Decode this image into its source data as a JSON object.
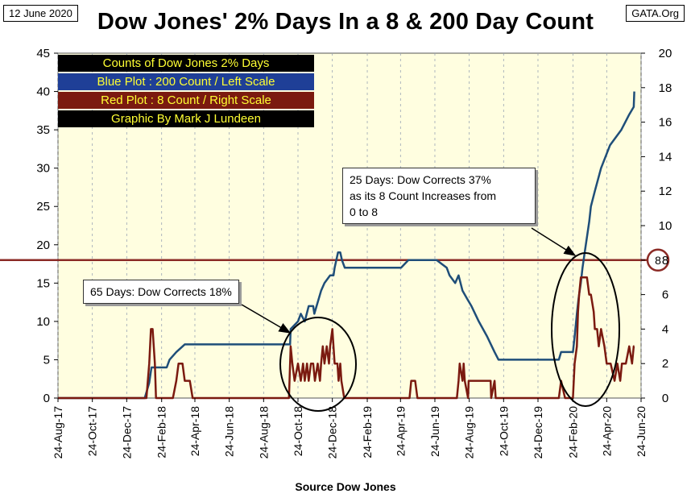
{
  "header": {
    "date": "12 June 2020",
    "title": "Dow Jones' 2% Days In a 8 & 200 Day Count",
    "source": "GATA.Org"
  },
  "legend": {
    "lines": [
      "Counts of Dow Jones 2% Days",
      "Blue Plot : 200 Count / Left Scale",
      "Red Plot : 8 Count / Right Scale",
      "Graphic By Mark J Lundeen"
    ],
    "colors": [
      "#000000",
      "#1f3f97",
      "#7b1a10",
      "#000000"
    ]
  },
  "annotations": {
    "a1": "65 Days: Dow Corrects 18%",
    "a2_line1": "25 Days: Dow Corrects 37%",
    "a2_line2": "as its 8 Count Increases from",
    "a2_line3": "0 to 8"
  },
  "reference": {
    "value": 8,
    "label": "8",
    "color": "#8b2a25"
  },
  "chart_data": {
    "type": "line",
    "xlabel": "Source Dow Jones",
    "x_ticks": [
      "24-Aug-17",
      "24-Oct-17",
      "24-Dec-17",
      "24-Feb-18",
      "24-Apr-18",
      "24-Jun-18",
      "24-Aug-18",
      "24-Oct-18",
      "24-Dec-18",
      "24-Feb-19",
      "24-Apr-19",
      "24-Jun-19",
      "24-Aug-19",
      "24-Oct-19",
      "24-Dec-19",
      "24-Feb-20",
      "24-Apr-20",
      "24-Jun-20"
    ],
    "x_range": [
      "24-Aug-17",
      "24-Jun-20"
    ],
    "y_left": {
      "ylim": [
        0,
        45
      ],
      "ticks": [
        0,
        5,
        10,
        15,
        20,
        25,
        30,
        35,
        40,
        45
      ]
    },
    "y_right": {
      "ylim": [
        0,
        20
      ],
      "ticks": [
        0,
        2,
        4,
        6,
        8,
        10,
        12,
        14,
        16,
        18,
        20
      ]
    },
    "plot_background": "#fffee0",
    "series": [
      {
        "name": "200 Count",
        "axis": "left",
        "color": "#1f4e79",
        "x": [
          "2017-08-24",
          "2018-01-25",
          "2018-02-02",
          "2018-02-06",
          "2018-03-05",
          "2018-03-10",
          "2018-03-22",
          "2018-04-06",
          "2018-04-20",
          "2018-10-10",
          "2018-10-11",
          "2018-10-24",
          "2018-10-29",
          "2018-11-05",
          "2018-11-12",
          "2018-11-20",
          "2018-11-22",
          "2018-12-04",
          "2018-12-10",
          "2018-12-20",
          "2018-12-26",
          "2018-12-28",
          "2019-01-03",
          "2019-01-07",
          "2019-01-10",
          "2019-01-15",
          "2019-04-25",
          "2019-05-08",
          "2019-05-14",
          "2019-05-20",
          "2019-06-27",
          "2019-07-15",
          "2019-07-20",
          "2019-07-30",
          "2019-08-05",
          "2019-08-12",
          "2019-08-20",
          "2019-08-28",
          "2019-09-10",
          "2019-09-25",
          "2019-10-08",
          "2019-10-15",
          "2020-01-30",
          "2020-02-03",
          "2020-02-24",
          "2020-02-27",
          "2020-03-02",
          "2020-03-05",
          "2020-03-09",
          "2020-03-12",
          "2020-03-16",
          "2020-03-18",
          "2020-03-24",
          "2020-03-27",
          "2020-04-03",
          "2020-04-14",
          "2020-04-30",
          "2020-05-20",
          "2020-06-03",
          "2020-06-11",
          "2020-06-12"
        ],
        "y": [
          0,
          0,
          2,
          4,
          4,
          5,
          6,
          7,
          7,
          7,
          9,
          10,
          11,
          10,
          12,
          12,
          11,
          14,
          15,
          16,
          16,
          17,
          19,
          19,
          18,
          17,
          17,
          18,
          18,
          18,
          18,
          17,
          16,
          15,
          16,
          14,
          13,
          12,
          10,
          8,
          6,
          5,
          5,
          6,
          6,
          8,
          11,
          13,
          15,
          17,
          19,
          20,
          23,
          25,
          27,
          30,
          33,
          35,
          37,
          38,
          40
        ]
      },
      {
        "name": "8 Count",
        "axis": "right",
        "color": "#7b1a10",
        "x": [
          "2017-08-24",
          "2018-01-28",
          "2018-02-02",
          "2018-02-05",
          "2018-02-08",
          "2018-02-12",
          "2018-02-14",
          "2018-03-16",
          "2018-03-22",
          "2018-03-26",
          "2018-04-02",
          "2018-04-06",
          "2018-04-15",
          "2018-04-20",
          "2018-10-08",
          "2018-10-10",
          "2018-10-11",
          "2018-10-14",
          "2018-10-18",
          "2018-10-24",
          "2018-10-29",
          "2018-11-02",
          "2018-11-05",
          "2018-11-09",
          "2018-11-12",
          "2018-11-16",
          "2018-11-20",
          "2018-11-23",
          "2018-11-28",
          "2018-12-02",
          "2018-12-04",
          "2018-12-07",
          "2018-12-10",
          "2018-12-14",
          "2018-12-18",
          "2018-12-20",
          "2018-12-24",
          "2018-12-26",
          "2018-12-28",
          "2019-01-02",
          "2019-01-04",
          "2019-01-07",
          "2019-01-09",
          "2019-01-14",
          "2019-05-10",
          "2019-05-13",
          "2019-05-20",
          "2019-05-24",
          "2019-08-02",
          "2019-08-05",
          "2019-08-07",
          "2019-08-12",
          "2019-08-14",
          "2019-08-16",
          "2019-08-22",
          "2019-08-23",
          "2019-08-30",
          "2019-10-01",
          "2019-10-02",
          "2019-10-08",
          "2019-10-10",
          "2020-01-30",
          "2020-02-03",
          "2020-02-10",
          "2020-02-24",
          "2020-02-27",
          "2020-03-02",
          "2020-03-04",
          "2020-03-06",
          "2020-03-09",
          "2020-03-12",
          "2020-03-16",
          "2020-03-18",
          "2020-03-20",
          "2020-03-24",
          "2020-03-27",
          "2020-04-01",
          "2020-04-03",
          "2020-04-07",
          "2020-04-10",
          "2020-04-14",
          "2020-04-20",
          "2020-04-24",
          "2020-05-01",
          "2020-05-08",
          "2020-05-13",
          "2020-05-18",
          "2020-05-21",
          "2020-05-28",
          "2020-06-03",
          "2020-06-08",
          "2020-06-11",
          "2020-06-12"
        ],
        "y": [
          0,
          0,
          2,
          4,
          4,
          2,
          0,
          0,
          1,
          2,
          2,
          1,
          1,
          0,
          0,
          2,
          3,
          2,
          1,
          2,
          1,
          2,
          1,
          2,
          1,
          2,
          2,
          1,
          2,
          1,
          2,
          3,
          2,
          3,
          2,
          3,
          4,
          3,
          2,
          2,
          1,
          2,
          1,
          0,
          0,
          1,
          1,
          0,
          0,
          1,
          2,
          1,
          2,
          1,
          0,
          1,
          1,
          1,
          0,
          1,
          0,
          0,
          1,
          0,
          0,
          2,
          3,
          5,
          6,
          7,
          7,
          7,
          7,
          7,
          6,
          6,
          5,
          4,
          4,
          3,
          4,
          3,
          2,
          2,
          1,
          2,
          1,
          2,
          2,
          3,
          2,
          3,
          3
        ]
      }
    ]
  }
}
